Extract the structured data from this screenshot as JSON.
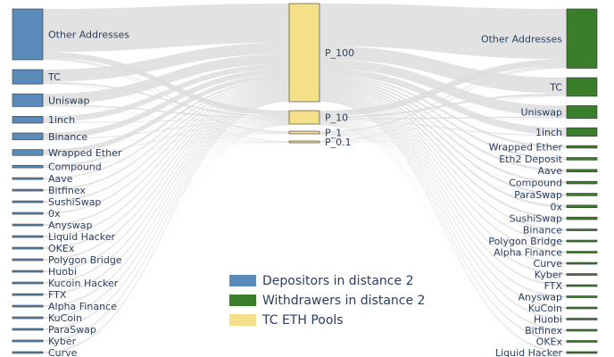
{
  "colors": {
    "depositor": "#5b8bba",
    "withdrawer": "#3a7d2a",
    "pool": "#f5e08a",
    "flow": "#dddddd",
    "text": "#2a3f5f"
  },
  "legend": [
    {
      "label": "Depositors in distance 2",
      "color_key": "depositor"
    },
    {
      "label": "Withdrawers in distance 2",
      "color_key": "withdrawer"
    },
    {
      "label": "TC ETH Pools",
      "color_key": "pool"
    }
  ],
  "depositors": [
    {
      "label": "Other Addresses",
      "weight": 60
    },
    {
      "label": "TC",
      "weight": 17
    },
    {
      "label": "Uniswap",
      "weight": 15
    },
    {
      "label": "1inch",
      "weight": 8
    },
    {
      "label": "Binance",
      "weight": 8
    },
    {
      "label": "Wrapped Ether",
      "weight": 7
    },
    {
      "label": "Compound",
      "weight": 3
    },
    {
      "label": "Aave",
      "weight": 2
    },
    {
      "label": "Bitfinex",
      "weight": 2
    },
    {
      "label": "SushiSwap",
      "weight": 2
    },
    {
      "label": "0x",
      "weight": 2
    },
    {
      "label": "Anyswap",
      "weight": 2
    },
    {
      "label": "Liquid Hacker",
      "weight": 2
    },
    {
      "label": "OKEx",
      "weight": 2
    },
    {
      "label": "Polygon Bridge",
      "weight": 2
    },
    {
      "label": "Huobi",
      "weight": 2
    },
    {
      "label": "Kucoin Hacker",
      "weight": 2
    },
    {
      "label": "FTX",
      "weight": 2
    },
    {
      "label": "Alpha Finance",
      "weight": 2
    },
    {
      "label": "KuCoin",
      "weight": 2
    },
    {
      "label": "ParaSwap",
      "weight": 2
    },
    {
      "label": "Kyber",
      "weight": 2
    },
    {
      "label": "Curve",
      "weight": 2
    }
  ],
  "pools": [
    {
      "label": "P_100",
      "weight": 110
    },
    {
      "label": "P_10",
      "weight": 15
    },
    {
      "label": "P_1",
      "weight": 3
    },
    {
      "label": "P_0.1",
      "weight": 2
    }
  ],
  "withdrawers": [
    {
      "label": "Other Addresses",
      "weight": 70
    },
    {
      "label": "TC",
      "weight": 22
    },
    {
      "label": "Uniswap",
      "weight": 15
    },
    {
      "label": "1inch",
      "weight": 10
    },
    {
      "label": "Wrapped Ether",
      "weight": 3
    },
    {
      "label": "Eth2 Deposit",
      "weight": 3
    },
    {
      "label": "Aave",
      "weight": 3
    },
    {
      "label": "Compound",
      "weight": 3
    },
    {
      "label": "ParaSwap",
      "weight": 3
    },
    {
      "label": "0x",
      "weight": 3
    },
    {
      "label": "SushiSwap",
      "weight": 3
    },
    {
      "label": "Binance",
      "weight": 2
    },
    {
      "label": "Polygon Bridge",
      "weight": 2
    },
    {
      "label": "Alpha Finance",
      "weight": 2
    },
    {
      "label": "Curve",
      "weight": 2
    },
    {
      "label": "Kyber",
      "weight": 2
    },
    {
      "label": "FTX",
      "weight": 2
    },
    {
      "label": "Anyswap",
      "weight": 2
    },
    {
      "label": "KuCoin",
      "weight": 2
    },
    {
      "label": "Huobi",
      "weight": 2
    },
    {
      "label": "Bitfinex",
      "weight": 2
    },
    {
      "label": "OKEx",
      "weight": 2
    },
    {
      "label": "Liquid Hacker",
      "weight": 2
    }
  ]
}
